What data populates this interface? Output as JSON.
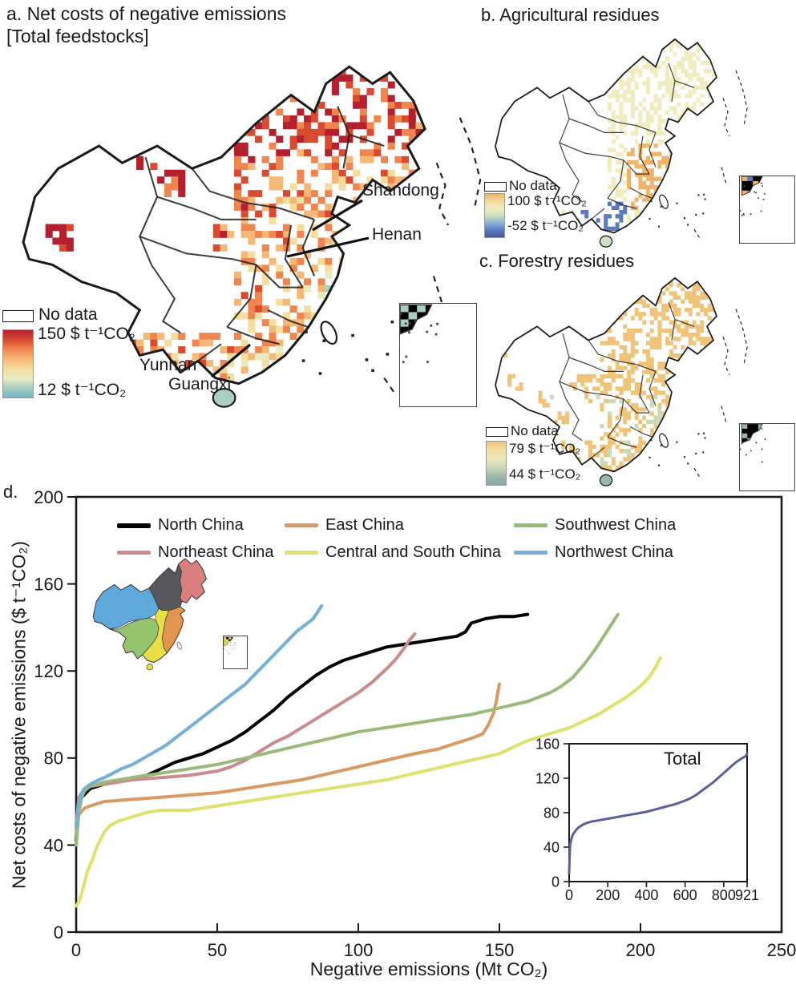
{
  "figure": {
    "panel_a": {
      "title_line1": "a. Net costs of negative emissions",
      "title_line2": "[Total feedstocks]",
      "legend": {
        "no_data": "No data",
        "max": "150 $ t⁻¹CO₂",
        "min": "12 $ t⁻¹CO₂",
        "ramp": [
          "#b5202e",
          "#d94a30",
          "#ef8650",
          "#f6b877",
          "#f5dd9e",
          "#e9ecc0",
          "#a9cfc2",
          "#72b4c4"
        ]
      },
      "annotations": {
        "shandong": "Shandong",
        "henan": "Henan",
        "yunnan": "Yunnan",
        "guangxi": "Guangxi"
      }
    },
    "panel_b": {
      "title": "b. Agricultural residues",
      "legend": {
        "no_data": "No data",
        "max": "100 $ t⁻¹CO₂",
        "min": "-52 $ t⁻¹CO₂",
        "ramp": [
          "#efb468",
          "#f2d89e",
          "#f0ecc0",
          "#cfe0c2",
          "#8fb2d8",
          "#5b7abc",
          "#4456a0"
        ]
      }
    },
    "panel_c": {
      "title": "c. Forestry residues",
      "legend": {
        "no_data": "No data",
        "max": "79 $ t⁻¹CO₂",
        "min": "44 $ t⁻¹CO₂",
        "ramp": [
          "#f0c478",
          "#f2dfa4",
          "#eee7bb",
          "#cdd8b6",
          "#9bb8ac",
          "#84a8a0"
        ]
      }
    },
    "panel_d": {
      "label": "d.",
      "ylabel": "Net costs of negative emissions ($ t⁻¹CO₂)",
      "xlabel": "Negative emissions (Mt CO₂)",
      "inset_title": "Total",
      "region_colors": {
        "north": "#57575c",
        "northeast": "#db7f7e",
        "east": "#e3954f",
        "central_south": "#e6df45",
        "southwest": "#96c46e",
        "northwest": "#5fa8dc"
      }
    }
  },
  "chart_data": [
    {
      "type": "line",
      "title": "",
      "xlabel": "Negative emissions (Mt CO₂)",
      "ylabel": "Net costs of negative emissions ($ t⁻¹CO₂)",
      "xlim": [
        0,
        250
      ],
      "ylim": [
        0,
        200
      ],
      "xticks": [
        0,
        50,
        100,
        150,
        200,
        250
      ],
      "yticks": [
        0,
        40,
        80,
        120,
        160,
        200
      ],
      "grid": false,
      "legend_position": "top-left-inside",
      "series": [
        {
          "name": "North China",
          "color": "#000000",
          "points": [
            [
              0,
              42
            ],
            [
              1,
              58
            ],
            [
              2,
              62
            ],
            [
              5,
              66
            ],
            [
              10,
              68
            ],
            [
              15,
              69
            ],
            [
              20,
              71
            ],
            [
              25,
              72
            ],
            [
              30,
              75
            ],
            [
              35,
              78
            ],
            [
              40,
              80
            ],
            [
              45,
              82
            ],
            [
              50,
              85
            ],
            [
              55,
              88
            ],
            [
              60,
              92
            ],
            [
              65,
              97
            ],
            [
              70,
              102
            ],
            [
              75,
              108
            ],
            [
              80,
              113
            ],
            [
              85,
              118
            ],
            [
              90,
              122
            ],
            [
              95,
              125
            ],
            [
              100,
              127
            ],
            [
              105,
              129
            ],
            [
              110,
              131
            ],
            [
              115,
              132
            ],
            [
              120,
              133
            ],
            [
              125,
              134
            ],
            [
              130,
              135
            ],
            [
              135,
              136
            ],
            [
              138,
              138
            ],
            [
              140,
              142
            ],
            [
              145,
              144
            ],
            [
              150,
              145
            ],
            [
              155,
              145
            ],
            [
              160,
              146
            ]
          ]
        },
        {
          "name": "Northeast China",
          "color": "#c98b8e",
          "points": [
            [
              0,
              50
            ],
            [
              1,
              62
            ],
            [
              3,
              66
            ],
            [
              5,
              67
            ],
            [
              10,
              68
            ],
            [
              20,
              70
            ],
            [
              30,
              71
            ],
            [
              40,
              72
            ],
            [
              50,
              74
            ],
            [
              55,
              76
            ],
            [
              60,
              79
            ],
            [
              65,
              83
            ],
            [
              70,
              87
            ],
            [
              75,
              90
            ],
            [
              80,
              94
            ],
            [
              85,
              98
            ],
            [
              90,
              102
            ],
            [
              95,
              106
            ],
            [
              100,
              110
            ],
            [
              105,
              115
            ],
            [
              110,
              121
            ],
            [
              113,
              125
            ],
            [
              116,
              130
            ],
            [
              118,
              134
            ],
            [
              120,
              137
            ]
          ]
        },
        {
          "name": "East China",
          "color": "#d89a62",
          "points": [
            [
              0,
              45
            ],
            [
              1,
              54
            ],
            [
              3,
              57
            ],
            [
              5,
              58
            ],
            [
              10,
              60
            ],
            [
              20,
              61
            ],
            [
              30,
              62
            ],
            [
              40,
              63
            ],
            [
              50,
              64
            ],
            [
              60,
              66
            ],
            [
              70,
              68
            ],
            [
              80,
              70
            ],
            [
              90,
              73
            ],
            [
              100,
              76
            ],
            [
              110,
              79
            ],
            [
              120,
              82
            ],
            [
              128,
              84
            ],
            [
              135,
              87
            ],
            [
              140,
              89
            ],
            [
              144,
              91
            ],
            [
              146,
              95
            ],
            [
              148,
              101
            ],
            [
              149,
              107
            ],
            [
              150,
              114
            ]
          ]
        },
        {
          "name": "Central and South China",
          "color": "#dce26c",
          "points": [
            [
              0,
              12
            ],
            [
              1,
              14
            ],
            [
              2,
              18
            ],
            [
              3,
              23
            ],
            [
              4,
              28
            ],
            [
              5,
              31
            ],
            [
              6,
              34
            ],
            [
              7,
              38
            ],
            [
              8,
              41
            ],
            [
              10,
              46
            ],
            [
              12,
              49
            ],
            [
              15,
              51
            ],
            [
              20,
              53
            ],
            [
              25,
              55
            ],
            [
              30,
              56
            ],
            [
              40,
              56
            ],
            [
              50,
              58
            ],
            [
              60,
              60
            ],
            [
              70,
              62
            ],
            [
              80,
              64
            ],
            [
              90,
              66
            ],
            [
              100,
              68
            ],
            [
              110,
              70
            ],
            [
              120,
              73
            ],
            [
              130,
              76
            ],
            [
              140,
              79
            ],
            [
              150,
              82
            ],
            [
              155,
              85
            ],
            [
              160,
              88
            ],
            [
              165,
              90
            ],
            [
              170,
              92
            ],
            [
              175,
              94
            ],
            [
              180,
              97
            ],
            [
              185,
              100
            ],
            [
              190,
              104
            ],
            [
              195,
              108
            ],
            [
              200,
              113
            ],
            [
              203,
              117
            ],
            [
              205,
              121
            ],
            [
              207,
              126
            ]
          ]
        },
        {
          "name": "Southwest China",
          "color": "#9aba7a",
          "points": [
            [
              0,
              40
            ],
            [
              1,
              55
            ],
            [
              2,
              62
            ],
            [
              3,
              65
            ],
            [
              5,
              67
            ],
            [
              10,
              69
            ],
            [
              15,
              70
            ],
            [
              20,
              71
            ],
            [
              25,
              72
            ],
            [
              30,
              73
            ],
            [
              40,
              75
            ],
            [
              50,
              77
            ],
            [
              60,
              80
            ],
            [
              70,
              83
            ],
            [
              80,
              86
            ],
            [
              90,
              89
            ],
            [
              100,
              92
            ],
            [
              110,
              94
            ],
            [
              120,
              96
            ],
            [
              130,
              98
            ],
            [
              140,
              100
            ],
            [
              150,
              103
            ],
            [
              160,
              106
            ],
            [
              168,
              110
            ],
            [
              172,
              113
            ],
            [
              176,
              117
            ],
            [
              180,
              123
            ],
            [
              184,
              130
            ],
            [
              187,
              136
            ],
            [
              190,
              142
            ],
            [
              192,
              146
            ]
          ]
        },
        {
          "name": "Northwest China",
          "color": "#74afd8",
          "points": [
            [
              0,
              48
            ],
            [
              1,
              60
            ],
            [
              2,
              64
            ],
            [
              3,
              66
            ],
            [
              5,
              68
            ],
            [
              8,
              70
            ],
            [
              10,
              71
            ],
            [
              13,
              73
            ],
            [
              16,
              75
            ],
            [
              20,
              77
            ],
            [
              24,
              80
            ],
            [
              28,
              83
            ],
            [
              32,
              86
            ],
            [
              36,
              90
            ],
            [
              40,
              94
            ],
            [
              44,
              98
            ],
            [
              48,
              102
            ],
            [
              52,
              106
            ],
            [
              56,
              110
            ],
            [
              60,
              114
            ],
            [
              63,
              118
            ],
            [
              66,
              122
            ],
            [
              69,
              126
            ],
            [
              72,
              130
            ],
            [
              75,
              134
            ],
            [
              78,
              138
            ],
            [
              80,
              140
            ],
            [
              82,
              142
            ],
            [
              84,
              144
            ],
            [
              85,
              146
            ],
            [
              86,
              148
            ],
            [
              87,
              150
            ]
          ]
        }
      ]
    },
    {
      "type": "line",
      "title": "Total",
      "xlabel": "",
      "ylabel": "",
      "xlim": [
        0,
        921
      ],
      "ylim": [
        0,
        160
      ],
      "xticks": [
        0,
        200,
        400,
        600,
        800,
        921
      ],
      "yticks": [
        0,
        40,
        80,
        120,
        160
      ],
      "grid": false,
      "series": [
        {
          "name": "Total",
          "color": "#5c5e9e",
          "points": [
            [
              0,
              10
            ],
            [
              2,
              25
            ],
            [
              4,
              38
            ],
            [
              6,
              44
            ],
            [
              10,
              48
            ],
            [
              15,
              52
            ],
            [
              20,
              55
            ],
            [
              30,
              58
            ],
            [
              40,
              61
            ],
            [
              50,
              63
            ],
            [
              70,
              66
            ],
            [
              90,
              68
            ],
            [
              120,
              70
            ],
            [
              150,
              71
            ],
            [
              200,
              73
            ],
            [
              250,
              75
            ],
            [
              300,
              77
            ],
            [
              350,
              79
            ],
            [
              400,
              81
            ],
            [
              450,
              84
            ],
            [
              500,
              87
            ],
            [
              550,
              90
            ],
            [
              600,
              94
            ],
            [
              630,
              97
            ],
            [
              660,
              101
            ],
            [
              690,
              106
            ],
            [
              720,
              111
            ],
            [
              750,
              116
            ],
            [
              780,
              122
            ],
            [
              800,
              126
            ],
            [
              820,
              130
            ],
            [
              840,
              134
            ],
            [
              860,
              138
            ],
            [
              880,
              141
            ],
            [
              900,
              144
            ],
            [
              910,
              145
            ],
            [
              915,
              146
            ],
            [
              921,
              149
            ]
          ]
        }
      ]
    }
  ]
}
